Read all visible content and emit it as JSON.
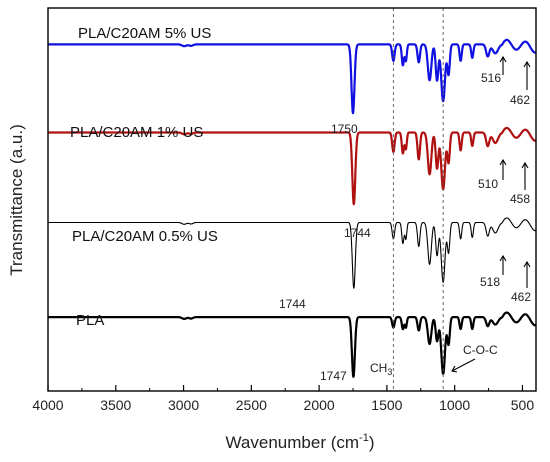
{
  "chart_data": {
    "type": "line",
    "xlabel": "Wavenumber (cm",
    "xlabel_sup": "-1",
    "xlabel_close": ")",
    "ylabel": "Transmittance (a.u.)",
    "xlim": [
      4000,
      400
    ],
    "x_ticks": [
      4000,
      3500,
      3000,
      2500,
      2000,
      1500,
      1000,
      500
    ],
    "reference_lines": [
      1452,
      1085
    ],
    "series": [
      {
        "name": "PLA/C20AM 5% US",
        "color": "#1010e0",
        "stroke": 2.2,
        "baseline": 0.905,
        "depth": 0.78,
        "peaks": [
          [
            2995,
            0.006,
            16
          ],
          [
            2945,
            0.005,
            14
          ],
          [
            1750,
            0.23,
            11
          ],
          [
            1452,
            0.055,
            9
          ],
          [
            1382,
            0.07,
            8
          ],
          [
            1360,
            0.055,
            7
          ],
          [
            1265,
            0.06,
            9
          ],
          [
            1185,
            0.12,
            13
          ],
          [
            1130,
            0.12,
            10
          ],
          [
            1085,
            0.19,
            14
          ],
          [
            1045,
            0.1,
            9
          ],
          [
            956,
            0.055,
            8
          ],
          [
            870,
            0.045,
            8
          ],
          [
            756,
            0.04,
            12
          ],
          [
            700,
            0.03,
            20
          ]
        ],
        "labels": [
          "1750",
          "516",
          "462"
        ]
      },
      {
        "name": "PLA/C20AM 1% US",
        "color": "#b01010",
        "stroke": 2.2,
        "baseline": 0.675,
        "depth": 0.78,
        "peaks": [
          [
            2995,
            0.006,
            16
          ],
          [
            2945,
            0.005,
            14
          ],
          [
            1744,
            0.24,
            11
          ],
          [
            1452,
            0.065,
            9
          ],
          [
            1382,
            0.07,
            8
          ],
          [
            1360,
            0.055,
            7
          ],
          [
            1265,
            0.09,
            9
          ],
          [
            1185,
            0.14,
            13
          ],
          [
            1130,
            0.12,
            10
          ],
          [
            1085,
            0.19,
            14
          ],
          [
            1045,
            0.1,
            9
          ],
          [
            956,
            0.06,
            8
          ],
          [
            870,
            0.045,
            8
          ],
          [
            756,
            0.045,
            12
          ],
          [
            700,
            0.035,
            20
          ]
        ],
        "labels": [
          "1744",
          "510",
          "458"
        ]
      },
      {
        "name": "PLA/C20AM 0.5% US",
        "color": "#000000",
        "stroke": 1.1,
        "baseline": 0.44,
        "depth": 0.78,
        "peaks": [
          [
            2995,
            0.006,
            16
          ],
          [
            2945,
            0.005,
            14
          ],
          [
            1744,
            0.22,
            11
          ],
          [
            1452,
            0.055,
            9
          ],
          [
            1382,
            0.07,
            8
          ],
          [
            1360,
            0.055,
            7
          ],
          [
            1265,
            0.08,
            9
          ],
          [
            1185,
            0.14,
            13
          ],
          [
            1130,
            0.11,
            10
          ],
          [
            1085,
            0.2,
            14
          ],
          [
            1045,
            0.1,
            9
          ],
          [
            956,
            0.055,
            8
          ],
          [
            870,
            0.05,
            8
          ],
          [
            756,
            0.045,
            12
          ],
          [
            700,
            0.035,
            20
          ]
        ],
        "labels": [
          "1744",
          "518",
          "462"
        ]
      },
      {
        "name": "PLA",
        "color": "#000000",
        "stroke": 2.2,
        "baseline": 0.193,
        "depth": 0.78,
        "peaks": [
          [
            2995,
            0.006,
            16
          ],
          [
            2945,
            0.005,
            14
          ],
          [
            1747,
            0.2,
            11
          ],
          [
            1452,
            0.035,
            9
          ],
          [
            1382,
            0.04,
            8
          ],
          [
            1360,
            0.035,
            7
          ],
          [
            1265,
            0.045,
            9
          ],
          [
            1185,
            0.09,
            13
          ],
          [
            1130,
            0.08,
            10
          ],
          [
            1085,
            0.19,
            14
          ],
          [
            1045,
            0.09,
            9
          ],
          [
            956,
            0.04,
            8
          ],
          [
            870,
            0.04,
            8
          ],
          [
            756,
            0.03,
            12
          ],
          [
            700,
            0.025,
            20
          ]
        ],
        "labels": [
          "1747"
        ]
      }
    ],
    "annotations": [
      {
        "text": "CH",
        "sub": "3"
      },
      {
        "text": "C-O-C"
      }
    ]
  }
}
